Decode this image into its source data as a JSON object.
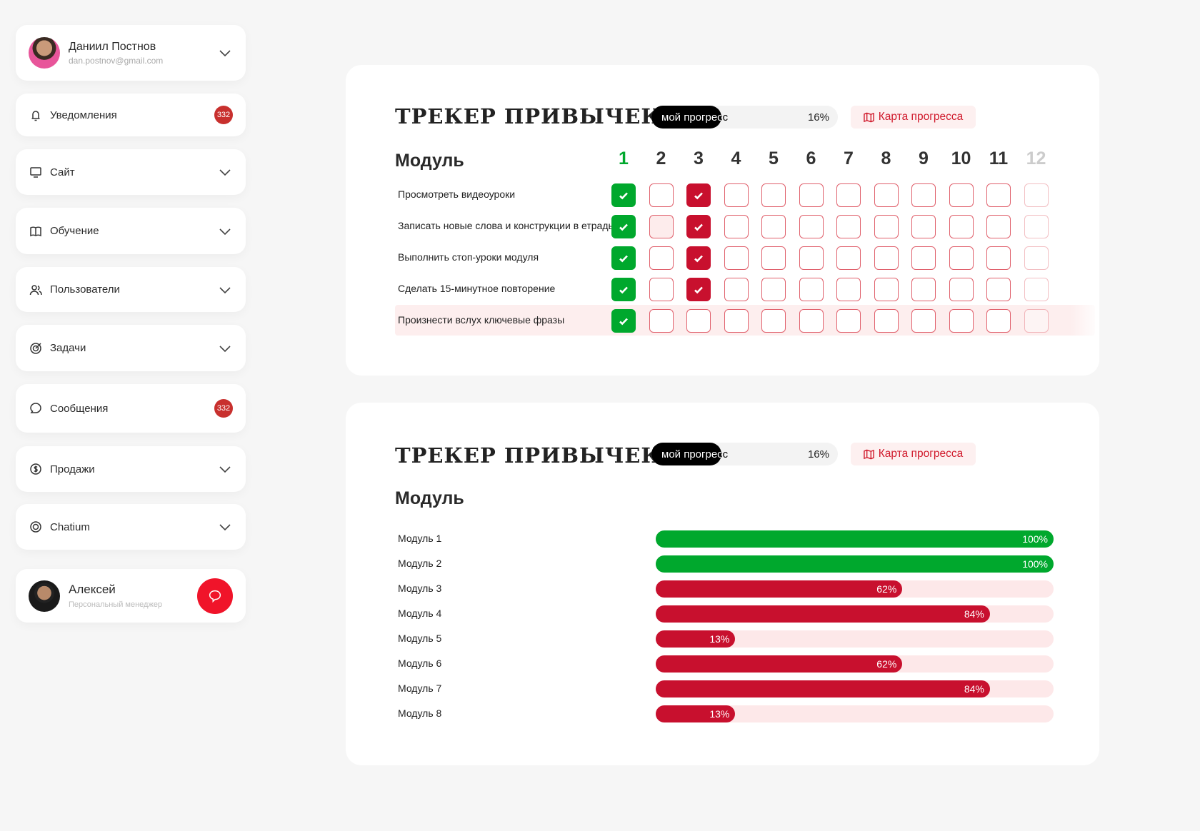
{
  "user": {
    "name": "Даниил Постнов",
    "email": "dan.postnov@gmail.com"
  },
  "sidebar": {
    "items": [
      {
        "label": "Уведомления",
        "icon": "bell-icon",
        "badge": "332"
      },
      {
        "label": "Сайт",
        "icon": "monitor-icon"
      },
      {
        "label": "Обучение",
        "icon": "book-icon"
      },
      {
        "label": "Пользователи",
        "icon": "users-icon"
      },
      {
        "label": "Задачи",
        "icon": "target-icon"
      },
      {
        "label": "Сообщения",
        "icon": "chat-icon",
        "badge": "332"
      },
      {
        "label": "Продажи",
        "icon": "dollar-icon"
      },
      {
        "label": "Chatium",
        "icon": "chatium-icon"
      }
    ]
  },
  "manager": {
    "name": "Алексей",
    "role": "Персональный менеджер"
  },
  "tracker": {
    "title": "ТРЕКЕР ПРИВЫЧЕК",
    "progress_label": "мой прогресс",
    "progress": "16%",
    "map_button": "Карта прогресса",
    "module_heading": "Модуль",
    "days": [
      "1",
      "2",
      "3",
      "4",
      "5",
      "6",
      "7",
      "8",
      "9",
      "10",
      "11",
      "12"
    ],
    "current_day": "1",
    "tasks": [
      {
        "label": "Просмотреть видеоуроки",
        "checks": [
          1,
          0,
          1,
          0,
          0,
          0,
          0,
          0,
          0,
          0,
          0,
          0
        ]
      },
      {
        "label": "Записать новые слова и конструкции в  етрадь",
        "checks": [
          1,
          0,
          1,
          0,
          0,
          0,
          0,
          0,
          0,
          0,
          0,
          0
        ]
      },
      {
        "label": "Выполнить стоп-уроки модуля",
        "checks": [
          1,
          0,
          1,
          0,
          0,
          0,
          0,
          0,
          0,
          0,
          0,
          0
        ]
      },
      {
        "label": "Сделать 15-минутное повторение",
        "checks": [
          1,
          0,
          1,
          0,
          0,
          0,
          0,
          0,
          0,
          0,
          0,
          0
        ]
      },
      {
        "label": "Произнести вслух ключевые фразы",
        "checks": [
          1,
          0,
          0,
          0,
          0,
          0,
          0,
          0,
          0,
          0,
          0,
          0
        ]
      }
    ]
  },
  "modules": {
    "title": "ТРЕКЕР ПРИВЫЧЕК",
    "progress_label": "мой прогресс",
    "progress": "16%",
    "map_button": "Карта прогресса",
    "module_heading": "Модуль",
    "items": [
      {
        "label": "Модуль 1",
        "value": 100,
        "text": "100%"
      },
      {
        "label": "Модуль 2",
        "value": 100,
        "text": "100%"
      },
      {
        "label": "Модуль 3",
        "value": 62,
        "text": "62%"
      },
      {
        "label": "Модуль 4",
        "value": 84,
        "text": "84%"
      },
      {
        "label": "Модуль 5",
        "value": 13,
        "text": "13%"
      },
      {
        "label": "Модуль 6",
        "value": 62,
        "text": "62%"
      },
      {
        "label": "Модуль 7",
        "value": 84,
        "text": "84%"
      },
      {
        "label": "Модуль 8",
        "value": 13,
        "text": "13%"
      }
    ]
  },
  "colors": {
    "green": "#00a82d",
    "red": "#c8102e",
    "track": "#fde8e9",
    "accent": "#d0192b"
  }
}
